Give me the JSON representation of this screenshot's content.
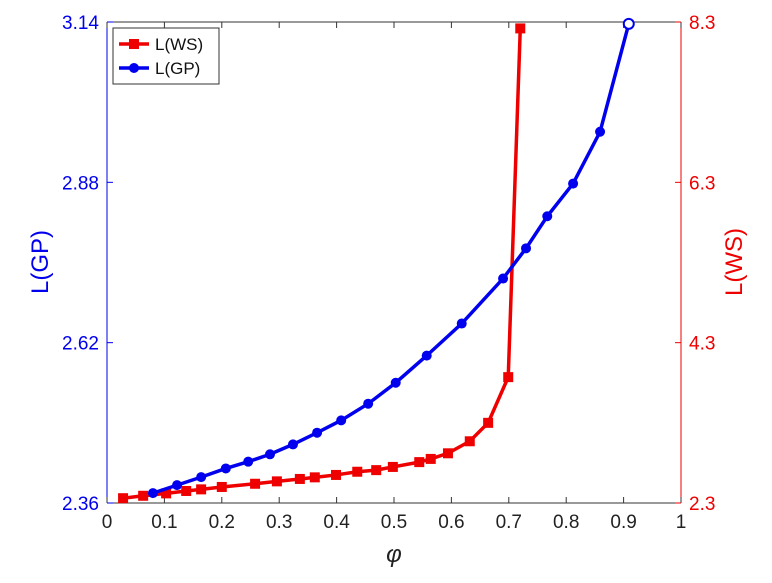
{
  "chart_data": {
    "type": "line",
    "title": "",
    "xlabel": "φ",
    "ylabel": "L(GP)",
    "ylabel_right": "L(WS)",
    "xlim": [
      0,
      1
    ],
    "ylim": [
      2.36,
      3.14
    ],
    "ylim_right": [
      2.3,
      8.3
    ],
    "xticks": [
      "0",
      "0.1",
      "0.2",
      "0.3",
      "0.4",
      "0.5",
      "0.6",
      "0.7",
      "0.8",
      "0.9",
      "1"
    ],
    "yticks": [
      "2.36",
      "2.62",
      "2.88",
      "3.14"
    ],
    "yticks_right": [
      "2.3",
      "4.3",
      "6.3",
      "8.3"
    ],
    "legend_position": "top-left",
    "grid": false,
    "colors": {
      "gp": "#0000ee",
      "ws": "#ee0000"
    },
    "series": [
      {
        "name": "L(WS)",
        "axis": "right",
        "marker": "square",
        "x": [
          0.028,
          0.063,
          0.103,
          0.138,
          0.164,
          0.2,
          0.258,
          0.296,
          0.336,
          0.362,
          0.399,
          0.436,
          0.469,
          0.498,
          0.544,
          0.564,
          0.594,
          0.632,
          0.664,
          0.699,
          0.72
        ],
        "y": [
          2.36,
          2.39,
          2.42,
          2.45,
          2.47,
          2.5,
          2.54,
          2.57,
          2.6,
          2.62,
          2.65,
          2.69,
          2.71,
          2.75,
          2.81,
          2.85,
          2.92,
          3.07,
          3.3,
          3.87,
          8.22
        ]
      },
      {
        "name": "L(GP)",
        "axis": "left",
        "marker": "circle",
        "x": [
          0.08,
          0.122,
          0.164,
          0.207,
          0.246,
          0.284,
          0.324,
          0.366,
          0.408,
          0.455,
          0.503,
          0.557,
          0.618,
          0.69,
          0.73,
          0.767,
          0.812,
          0.859,
          0.909
        ],
        "y": [
          2.376,
          2.389,
          2.402,
          2.416,
          2.427,
          2.439,
          2.455,
          2.474,
          2.494,
          2.521,
          2.555,
          2.599,
          2.651,
          2.724,
          2.773,
          2.825,
          2.878,
          2.962,
          3.137
        ]
      }
    ]
  }
}
